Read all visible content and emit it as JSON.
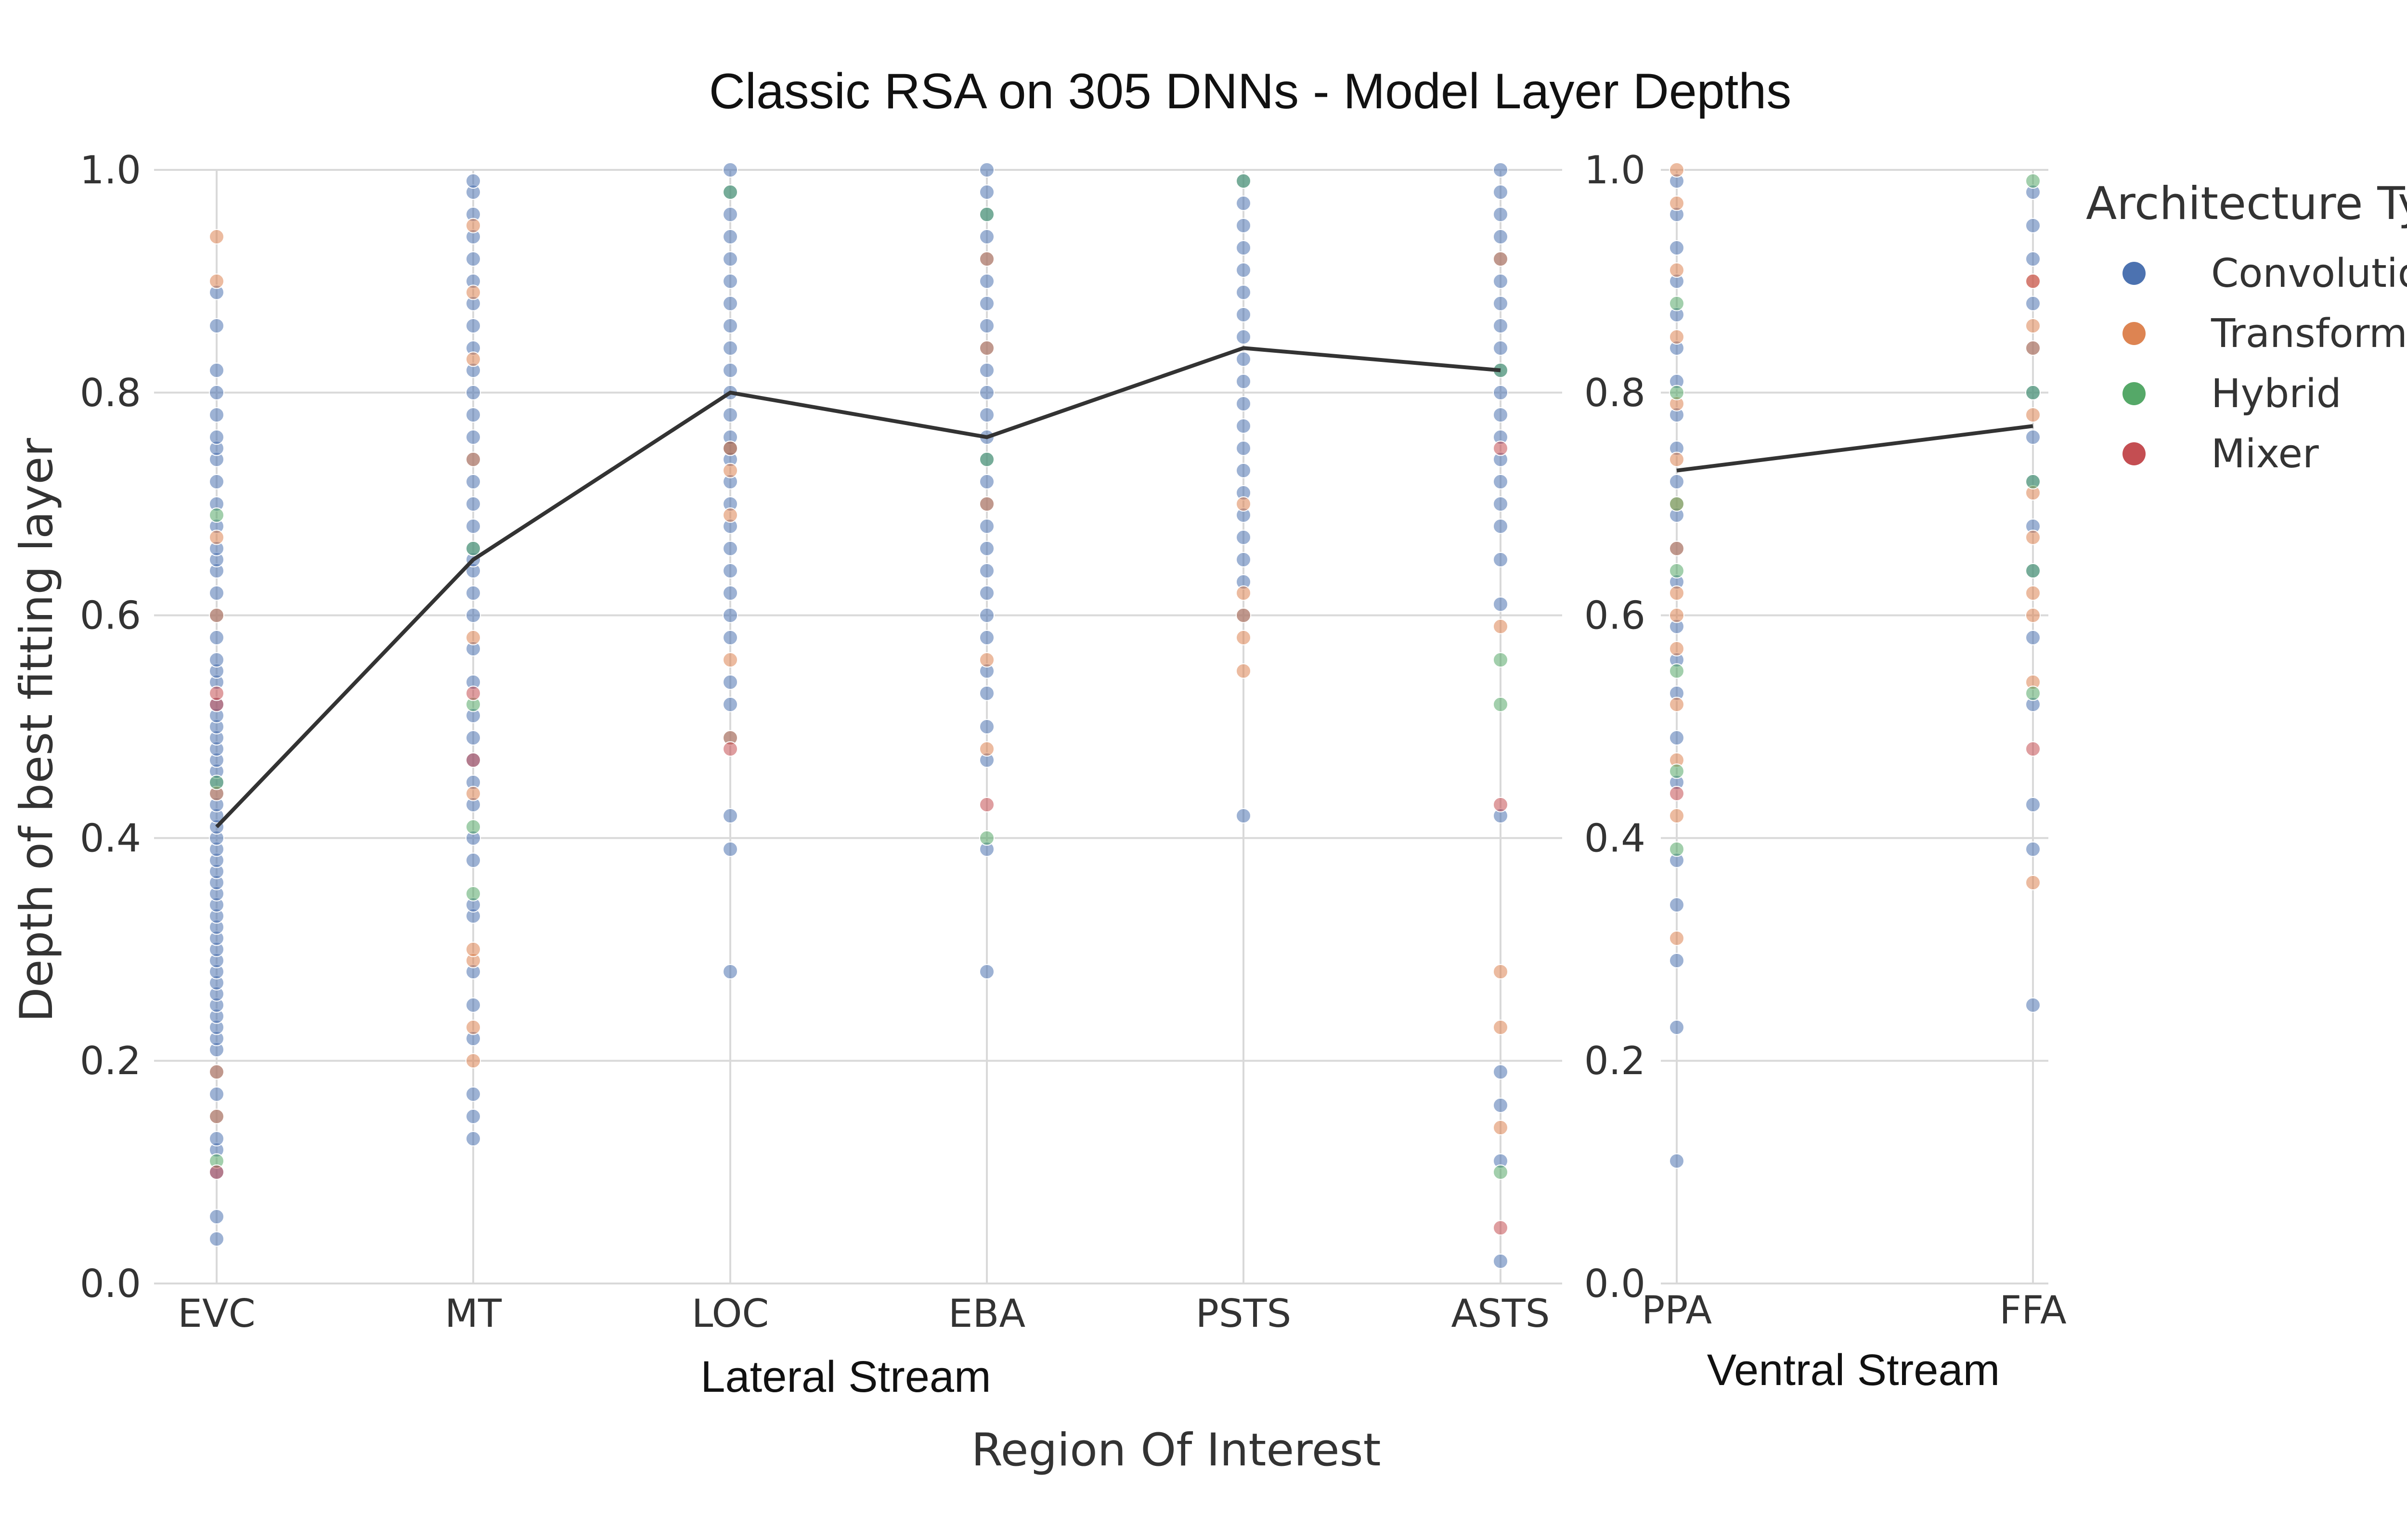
{
  "chart_data": {
    "type": "scatter",
    "title": "Classic RSA on 305 DNNs - Model Layer Depths",
    "ylabel": "Depth of best fitting layer",
    "xlabel": "Region Of Interest",
    "ylim": [
      0,
      1
    ],
    "yticks": [
      "0.0",
      "0.2",
      "0.4",
      "0.6",
      "0.8",
      "1.0"
    ],
    "grid": true,
    "legend": {
      "title": "Architecture Type",
      "placement": "top-right",
      "entries": [
        {
          "name": "Convolutional",
          "color": "#4c72b0"
        },
        {
          "name": "Transformer",
          "color": "#dd8452"
        },
        {
          "name": "Hybrid",
          "color": "#55a868"
        },
        {
          "name": "Mixer",
          "color": "#c44e52"
        }
      ]
    },
    "panels": [
      {
        "label": "Lateral Stream",
        "categories": [
          "EVC",
          "MT",
          "LOC",
          "EBA",
          "PSTS",
          "ASTS"
        ],
        "mean_line": [
          0.41,
          0.65,
          0.8,
          0.76,
          0.84,
          0.82
        ],
        "points": {
          "EVC": {
            "Convolutional": [
              0.04,
              0.06,
              0.1,
              0.12,
              0.13,
              0.15,
              0.17,
              0.19,
              0.21,
              0.22,
              0.23,
              0.24,
              0.25,
              0.26,
              0.27,
              0.28,
              0.29,
              0.3,
              0.31,
              0.32,
              0.33,
              0.34,
              0.35,
              0.36,
              0.37,
              0.38,
              0.39,
              0.4,
              0.41,
              0.42,
              0.43,
              0.44,
              0.45,
              0.46,
              0.47,
              0.48,
              0.49,
              0.5,
              0.51,
              0.52,
              0.54,
              0.55,
              0.56,
              0.58,
              0.6,
              0.62,
              0.64,
              0.65,
              0.66,
              0.68,
              0.7,
              0.72,
              0.74,
              0.75,
              0.76,
              0.78,
              0.8,
              0.82,
              0.86,
              0.89
            ],
            "Transformer": [
              0.15,
              0.19,
              0.44,
              0.6,
              0.67,
              0.9,
              0.94
            ],
            "Hybrid": [
              0.11,
              0.45,
              0.69
            ],
            "Mixer": [
              0.1,
              0.52,
              0.53
            ]
          },
          "MT": {
            "Convolutional": [
              0.13,
              0.15,
              0.17,
              0.22,
              0.25,
              0.28,
              0.33,
              0.34,
              0.38,
              0.4,
              0.43,
              0.45,
              0.47,
              0.49,
              0.51,
              0.54,
              0.57,
              0.6,
              0.62,
              0.64,
              0.65,
              0.66,
              0.68,
              0.7,
              0.72,
              0.74,
              0.76,
              0.78,
              0.8,
              0.82,
              0.84,
              0.86,
              0.88,
              0.9,
              0.92,
              0.94,
              0.96,
              0.98,
              0.99
            ],
            "Transformer": [
              0.2,
              0.23,
              0.29,
              0.3,
              0.44,
              0.58,
              0.74,
              0.83,
              0.89,
              0.95
            ],
            "Hybrid": [
              0.35,
              0.41,
              0.52,
              0.66
            ],
            "Mixer": [
              0.47,
              0.53
            ]
          },
          "LOC": {
            "Convolutional": [
              0.28,
              0.39,
              0.42,
              0.49,
              0.52,
              0.54,
              0.58,
              0.6,
              0.62,
              0.64,
              0.66,
              0.68,
              0.7,
              0.72,
              0.74,
              0.76,
              0.78,
              0.8,
              0.82,
              0.84,
              0.86,
              0.88,
              0.9,
              0.92,
              0.94,
              0.96,
              0.98,
              1.0
            ],
            "Transformer": [
              0.49,
              0.56,
              0.69,
              0.73
            ],
            "Hybrid": [
              0.75,
              0.98
            ],
            "Mixer": [
              0.48,
              0.75
            ]
          },
          "EBA": {
            "Convolutional": [
              0.28,
              0.39,
              0.47,
              0.5,
              0.53,
              0.55,
              0.58,
              0.6,
              0.62,
              0.64,
              0.66,
              0.68,
              0.7,
              0.72,
              0.74,
              0.76,
              0.78,
              0.8,
              0.82,
              0.84,
              0.86,
              0.88,
              0.9,
              0.92,
              0.94,
              0.96,
              0.98,
              1.0
            ],
            "Transformer": [
              0.48,
              0.56,
              0.7,
              0.84,
              0.92
            ],
            "Hybrid": [
              0.4,
              0.74,
              0.96
            ],
            "Mixer": [
              0.43
            ]
          },
          "PSTS": {
            "Convolutional": [
              0.42,
              0.6,
              0.63,
              0.65,
              0.67,
              0.69,
              0.71,
              0.73,
              0.75,
              0.77,
              0.79,
              0.81,
              0.83,
              0.85,
              0.87,
              0.89,
              0.91,
              0.93,
              0.95,
              0.97,
              0.99
            ],
            "Transformer": [
              0.55,
              0.58,
              0.6,
              0.62,
              0.7
            ],
            "Hybrid": [
              0.99
            ]
          },
          "ASTS": {
            "Convolutional": [
              0.02,
              0.11,
              0.16,
              0.19,
              0.42,
              0.61,
              0.65,
              0.68,
              0.7,
              0.72,
              0.74,
              0.76,
              0.78,
              0.8,
              0.82,
              0.84,
              0.86,
              0.88,
              0.9,
              0.92,
              0.94,
              0.96,
              0.98,
              1.0
            ],
            "Transformer": [
              0.14,
              0.23,
              0.28,
              0.59,
              0.92
            ],
            "Hybrid": [
              0.1,
              0.52,
              0.56,
              0.82
            ],
            "Mixer": [
              0.05,
              0.43,
              0.75
            ]
          }
        }
      },
      {
        "label": "Ventral Stream",
        "categories": [
          "PPA",
          "FFA"
        ],
        "mean_line": [
          0.73,
          0.77
        ],
        "points": {
          "PPA": {
            "Convolutional": [
              0.11,
              0.23,
              0.29,
              0.34,
              0.38,
              0.45,
              0.49,
              0.53,
              0.56,
              0.59,
              0.63,
              0.66,
              0.69,
              0.72,
              0.75,
              0.78,
              0.81,
              0.84,
              0.87,
              0.9,
              0.93,
              0.96,
              0.99
            ],
            "Transformer": [
              0.31,
              0.42,
              0.47,
              0.52,
              0.57,
              0.6,
              0.62,
              0.66,
              0.7,
              0.74,
              0.79,
              0.85,
              0.91,
              0.97,
              1.0
            ],
            "Hybrid": [
              0.39,
              0.46,
              0.55,
              0.64,
              0.7,
              0.8,
              0.88
            ],
            "Mixer": [
              0.44
            ]
          },
          "FFA": {
            "Convolutional": [
              0.25,
              0.39,
              0.43,
              0.52,
              0.58,
              0.64,
              0.68,
              0.72,
              0.76,
              0.8,
              0.84,
              0.88,
              0.92,
              0.95,
              0.98
            ],
            "Transformer": [
              0.36,
              0.54,
              0.6,
              0.62,
              0.67,
              0.71,
              0.78,
              0.84,
              0.86,
              0.9
            ],
            "Hybrid": [
              0.53,
              0.64,
              0.72,
              0.8,
              0.99
            ],
            "Mixer": [
              0.48,
              0.9
            ]
          }
        }
      }
    ]
  }
}
